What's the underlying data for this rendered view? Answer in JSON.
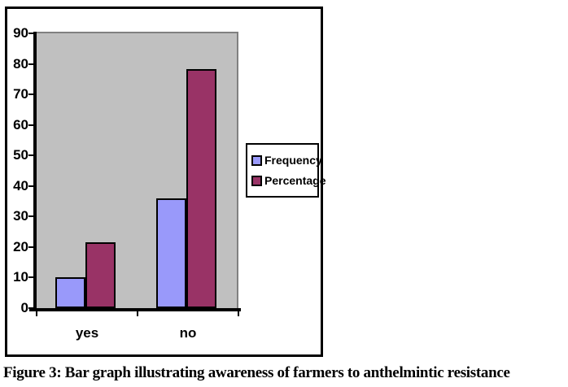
{
  "figure": {
    "caption": "Figure 3: Bar graph illustrating awareness of farmers to anthelmintic resistance"
  },
  "chart_data": {
    "type": "bar",
    "categories": [
      "yes",
      "no"
    ],
    "series": [
      {
        "name": "Frequency",
        "values": [
          10,
          36
        ],
        "color": "#9999FA"
      },
      {
        "name": "Percentage",
        "values": [
          21.7,
          78.3
        ],
        "color": "#993366"
      }
    ],
    "title": "",
    "xlabel": "",
    "ylabel": "",
    "ylim": [
      0,
      90
    ],
    "ytick_step": 10,
    "grid": false,
    "legend_position": "right",
    "plot_bg_color": "#C0C0C0",
    "plot_border_color": "#808080",
    "axis_color": "#000000",
    "bar_border_color": "#000000"
  }
}
